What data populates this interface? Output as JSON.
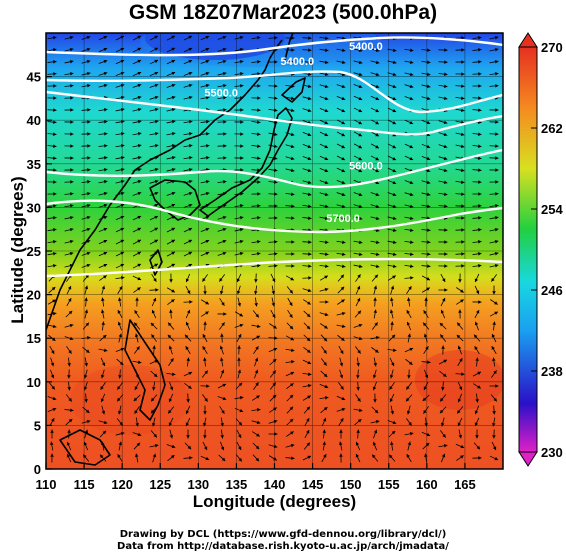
{
  "title": "GSM 18Z07Mar2023 (500.0hPa)",
  "axes": {
    "x_label": "Longitude (degrees)",
    "y_label": "Latitude  (degrees)",
    "x_ticks": [
      "110",
      "115",
      "120",
      "125",
      "130",
      "135",
      "140",
      "145",
      "150",
      "155",
      "160",
      "165"
    ],
    "y_ticks": [
      "0",
      "5",
      "10",
      "15",
      "20",
      "25",
      "30",
      "35",
      "40",
      "45"
    ],
    "x_range": [
      110,
      170
    ],
    "y_range": [
      0,
      50
    ]
  },
  "colorbar": {
    "ticks": [
      "270",
      "262",
      "254",
      "246",
      "238",
      "230"
    ],
    "range": [
      230,
      270
    ]
  },
  "contours": [
    {
      "label": "5400.0",
      "lat": 48.5,
      "lon": 152
    },
    {
      "label": "5400.0",
      "lat": 46.8,
      "lon": 143
    },
    {
      "label": "5500.0",
      "lat": 43.2,
      "lon": 133
    },
    {
      "label": "5600.0",
      "lat": 34.8,
      "lon": 152
    },
    {
      "label": "5700.0",
      "lat": 28.8,
      "lon": 149
    }
  ],
  "credits": {
    "line1": "Drawing by DCL (https://www.gfd-dennou.org/library/dcl/)",
    "line2": "Data from http://database.rish.kyoto-u.ac.jp/arch/jmadata/"
  }
}
